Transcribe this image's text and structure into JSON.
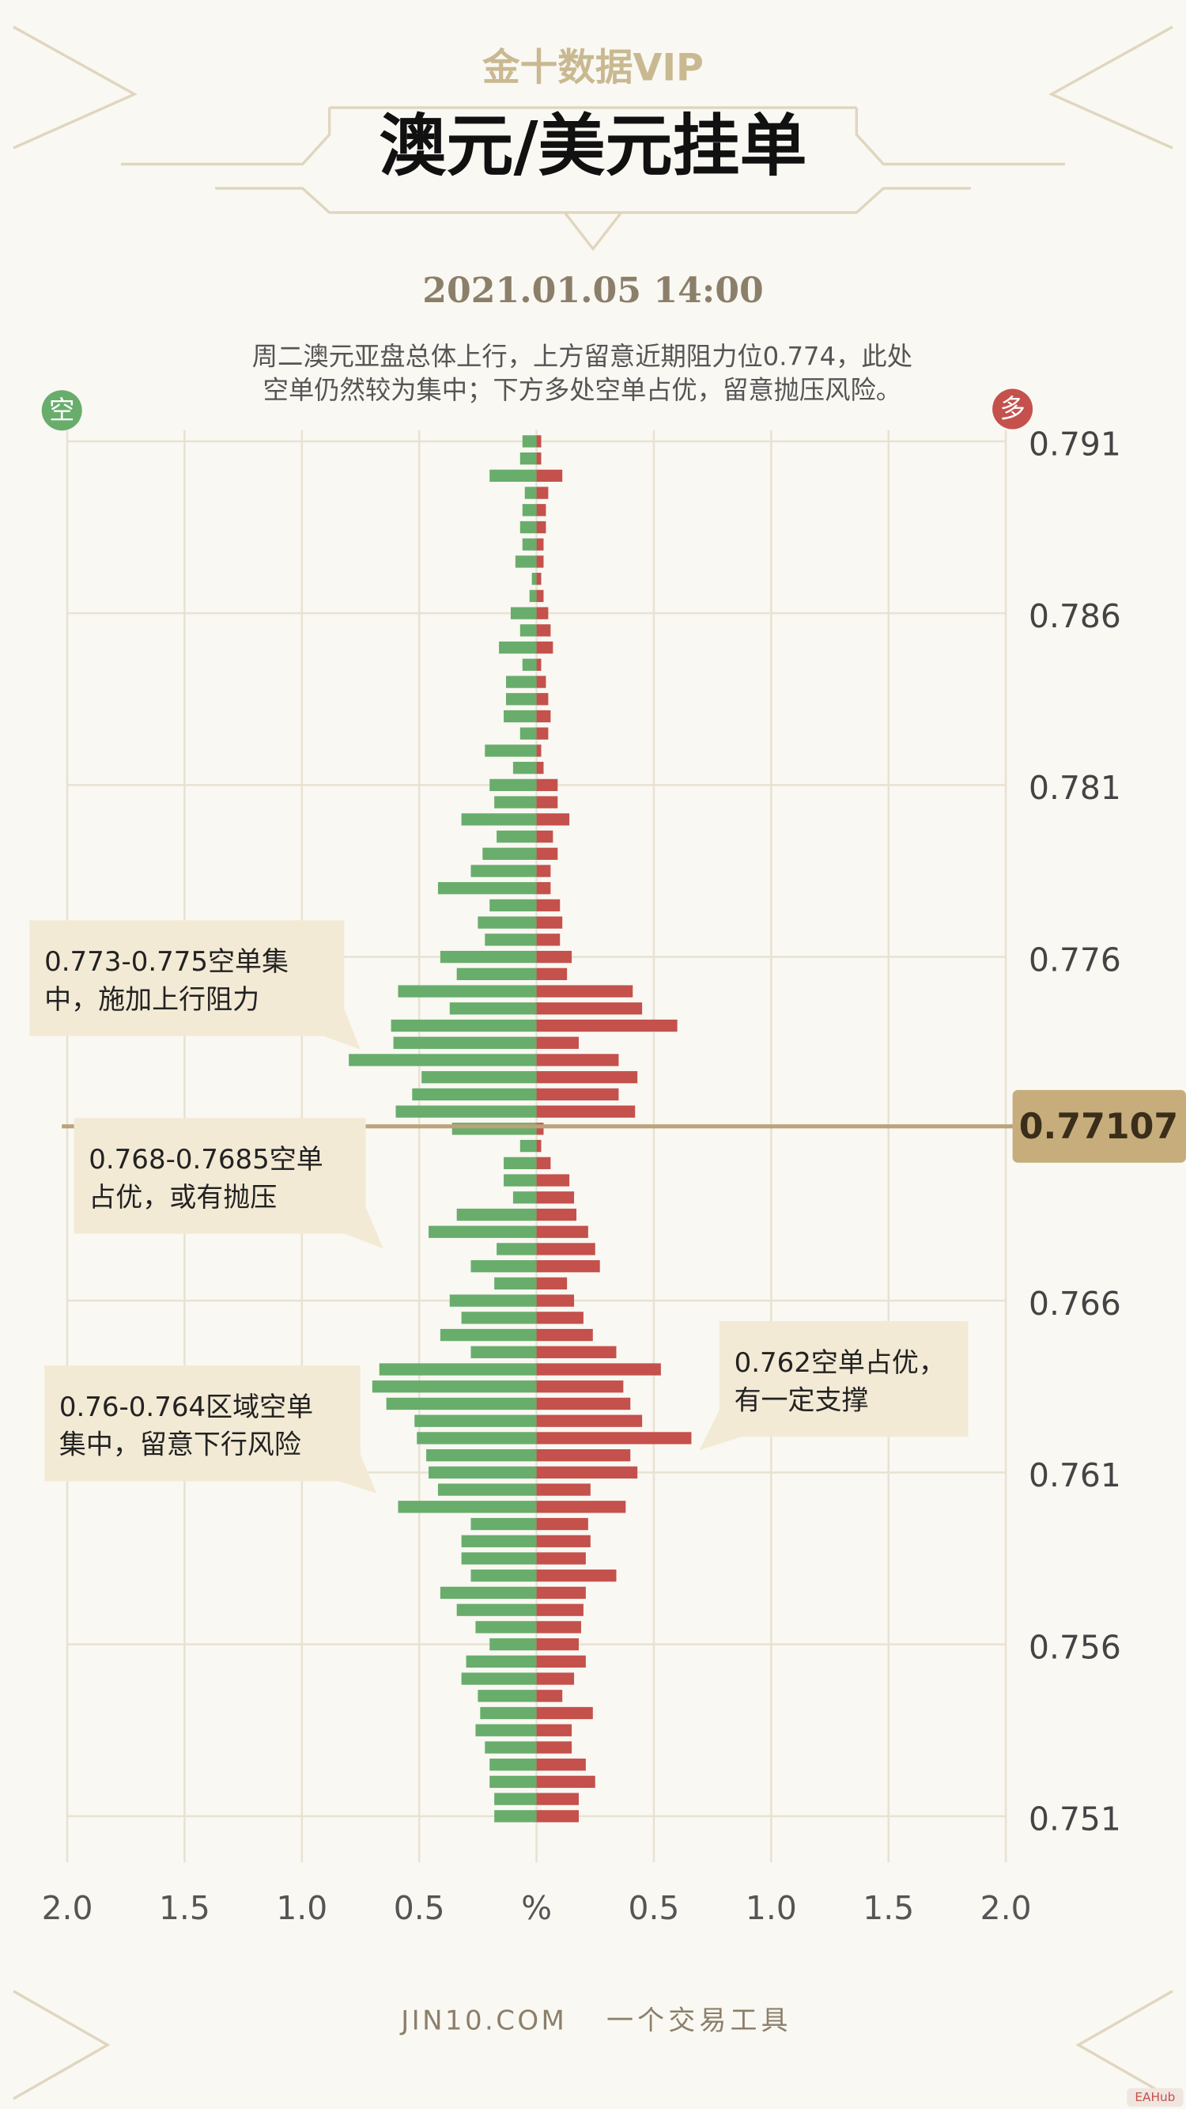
{
  "brand": "金十数据VIP",
  "chart_data": {
    "type": "butterfly",
    "title": "澳元/美元挂单",
    "subtitle": "2021.01.05 14:00",
    "description": [
      "周二澳元亚盘总体上行，上方留意近期阻力位0.774，此处",
      "空单仍然较为集中；下方多处空单占优，留意抛压风险。"
    ],
    "y": [
      0.791,
      0.7905,
      0.79,
      0.7895,
      0.789,
      0.7885,
      0.788,
      0.7875,
      0.787,
      0.7865,
      0.786,
      0.7855,
      0.785,
      0.7845,
      0.784,
      0.7835,
      0.783,
      0.7825,
      0.782,
      0.7815,
      0.781,
      0.7805,
      0.78,
      0.7795,
      0.779,
      0.7785,
      0.778,
      0.7775,
      0.777,
      0.7765,
      0.776,
      0.7755,
      0.775,
      0.7745,
      0.774,
      0.7735,
      0.773,
      0.7725,
      0.772,
      0.7715,
      0.771,
      0.7705,
      0.77,
      0.7695,
      0.769,
      0.7685,
      0.768,
      0.7675,
      0.767,
      0.7665,
      0.766,
      0.7655,
      0.765,
      0.7645,
      0.764,
      0.7635,
      0.763,
      0.7625,
      0.762,
      0.7615,
      0.761,
      0.7605,
      0.76,
      0.7595,
      0.759,
      0.7585,
      0.758,
      0.7575,
      0.757,
      0.7565,
      0.756,
      0.7555,
      0.755,
      0.7545,
      0.754,
      0.7535,
      0.753,
      0.7525,
      0.752,
      0.7515,
      0.751
    ],
    "series": [
      {
        "name": "空",
        "color": "#68ad6c",
        "values": [
          0.06,
          0.07,
          0.2,
          0.05,
          0.06,
          0.07,
          0.06,
          0.09,
          0.02,
          0.03,
          0.11,
          0.07,
          0.16,
          0.06,
          0.13,
          0.13,
          0.14,
          0.07,
          0.22,
          0.1,
          0.2,
          0.18,
          0.32,
          0.17,
          0.23,
          0.28,
          0.42,
          0.2,
          0.25,
          0.22,
          0.41,
          0.34,
          0.59,
          0.37,
          0.62,
          0.61,
          0.8,
          0.49,
          0.53,
          0.6,
          0.36,
          0.07,
          0.14,
          0.14,
          0.1,
          0.34,
          0.46,
          0.17,
          0.28,
          0.18,
          0.37,
          0.32,
          0.41,
          0.28,
          0.67,
          0.7,
          0.64,
          0.52,
          0.51,
          0.47,
          0.46,
          0.42,
          0.59,
          0.28,
          0.32,
          0.32,
          0.28,
          0.41,
          0.34,
          0.26,
          0.2,
          0.3,
          0.32,
          0.25,
          0.24,
          0.26,
          0.22,
          0.2,
          0.2,
          0.18,
          0.18
        ]
      },
      {
        "name": "多",
        "color": "#c4514c",
        "values": [
          0.02,
          0.02,
          0.11,
          0.05,
          0.04,
          0.04,
          0.03,
          0.03,
          0.02,
          0.03,
          0.05,
          0.06,
          0.07,
          0.02,
          0.04,
          0.05,
          0.06,
          0.05,
          0.02,
          0.03,
          0.09,
          0.09,
          0.14,
          0.07,
          0.09,
          0.06,
          0.06,
          0.1,
          0.11,
          0.1,
          0.15,
          0.13,
          0.41,
          0.45,
          0.6,
          0.18,
          0.35,
          0.43,
          0.35,
          0.42,
          0.03,
          0.02,
          0.06,
          0.14,
          0.16,
          0.17,
          0.22,
          0.25,
          0.27,
          0.13,
          0.16,
          0.2,
          0.24,
          0.34,
          0.53,
          0.37,
          0.4,
          0.45,
          0.66,
          0.4,
          0.43,
          0.23,
          0.38,
          0.22,
          0.23,
          0.21,
          0.34,
          0.21,
          0.2,
          0.19,
          0.18,
          0.21,
          0.16,
          0.11,
          0.24,
          0.15,
          0.15,
          0.21,
          0.25,
          0.18,
          0.18
        ]
      }
    ],
    "xlim": [
      -2,
      2
    ],
    "xticks": [
      {
        "value": -2,
        "label": "2.0"
      },
      {
        "value": -1.5,
        "label": "1.5"
      },
      {
        "value": -1,
        "label": "1.0"
      },
      {
        "value": -0.5,
        "label": "0.5"
      },
      {
        "value": 0,
        "label": "%"
      },
      0.5,
      {
        "value": 1,
        "label": "1.0"
      },
      1.5,
      {
        "value": 2,
        "label": "2.0"
      }
    ],
    "ylim": [
      0.7502,
      0.7918
    ],
    "yticks": [
      0.791,
      0.786,
      0.781,
      0.776,
      0.766,
      0.761,
      0.756,
      0.751
    ],
    "grid": true,
    "current_price": 0.77107,
    "annotations": [
      {
        "lines": [
          "0.773-0.775空单集",
          "中，施加上行阻力"
        ]
      },
      {
        "lines": [
          "0.768-0.7685空单",
          "占优，或有抛压"
        ]
      },
      {
        "lines": [
          "0.76-0.764区域空单",
          "集中，留意下行风险"
        ]
      },
      {
        "lines": [
          "0.762空单占优，",
          "有一定支撑"
        ]
      }
    ]
  },
  "footer": {
    "site": "JIN10.COM",
    "slogan": "一个交易工具"
  },
  "corner_badge": "EAHub"
}
